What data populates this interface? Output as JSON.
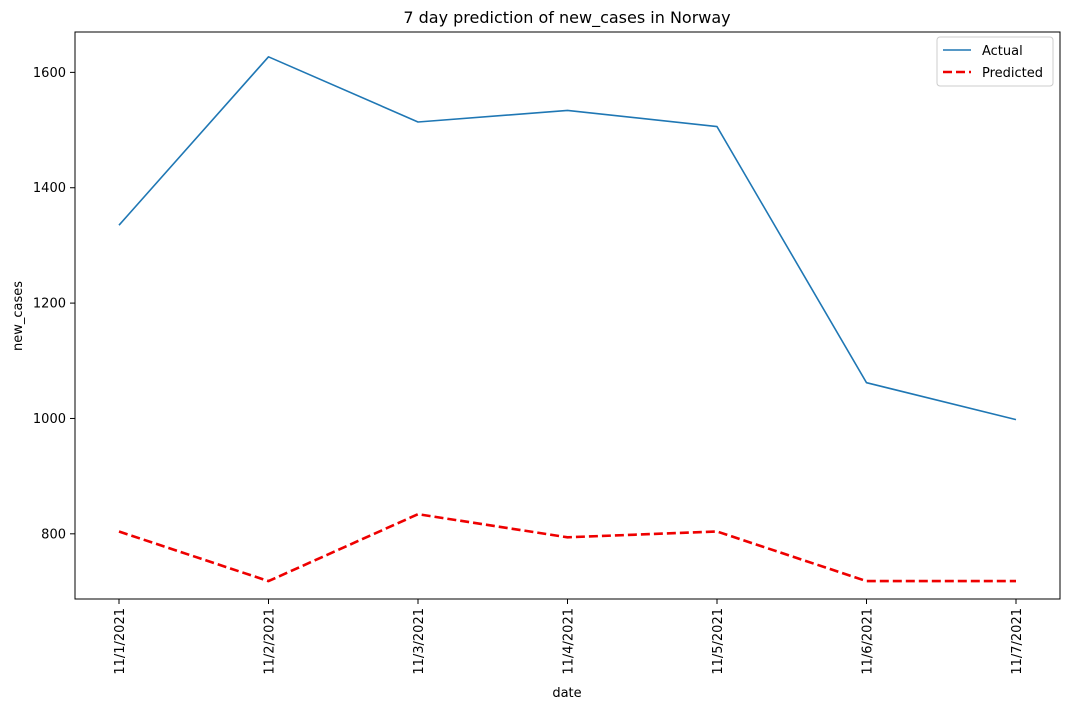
{
  "chart_data": {
    "type": "line",
    "title": "7 day prediction of new_cases in Norway",
    "xlabel": "date",
    "ylabel": "new_cases",
    "categories": [
      "11/1/2021",
      "11/2/2021",
      "11/3/2021",
      "11/4/2021",
      "11/5/2021",
      "11/6/2021",
      "11/7/2021"
    ],
    "ylim": [
      687,
      1670
    ],
    "yticks": [
      800,
      1000,
      1200,
      1400,
      1600
    ],
    "grid": false,
    "legend_position": "top-right",
    "series": [
      {
        "name": "Actual",
        "color": "#1f77b4",
        "style": "solid",
        "values": [
          1335,
          1627,
          1514,
          1534,
          1506,
          1062,
          998
        ]
      },
      {
        "name": "Predicted",
        "color": "#ee0000",
        "style": "dashed",
        "values": [
          804,
          718,
          834,
          794,
          804,
          718,
          718
        ]
      }
    ]
  }
}
